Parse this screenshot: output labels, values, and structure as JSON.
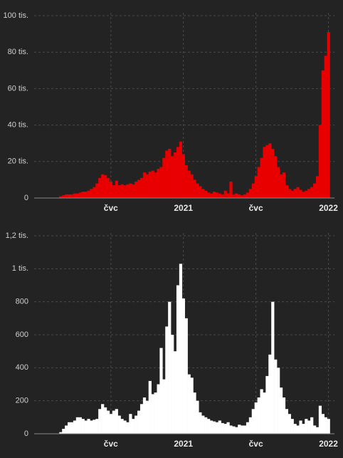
{
  "chart_data": [
    {
      "type": "bar",
      "color": "#e80000",
      "grid": true,
      "categories": [
        null,
        null,
        null,
        null,
        null,
        null,
        null,
        null,
        null,
        null,
        null,
        null,
        null,
        null,
        null,
        null,
        null,
        null,
        null,
        null,
        null,
        null,
        null,
        null,
        null,
        null,
        null,
        "čvc",
        null,
        null,
        null,
        null,
        null,
        null,
        null,
        null,
        null,
        null,
        null,
        null,
        null,
        null,
        null,
        null,
        null,
        null,
        null,
        null,
        null,
        null,
        null,
        null,
        null,
        "2021",
        null,
        null,
        null,
        null,
        null,
        null,
        null,
        null,
        null,
        null,
        null,
        null,
        null,
        null,
        null,
        null,
        null,
        null,
        null,
        null,
        null,
        null,
        null,
        null,
        null,
        "čvc",
        null,
        null,
        null,
        null,
        null,
        null,
        null,
        null,
        null,
        null,
        null,
        null,
        null,
        null,
        null,
        null,
        null,
        null,
        null,
        null,
        null,
        null,
        null,
        null,
        null,
        "2022"
      ],
      "values": [
        null,
        null,
        null,
        null,
        null,
        null,
        null,
        null,
        null,
        1000,
        1500,
        2000,
        2000,
        2000,
        2500,
        2500,
        3000,
        3500,
        3500,
        4000,
        5000,
        6000,
        8000,
        11000,
        13000,
        12500,
        11000,
        9000,
        7000,
        9500,
        7000,
        7500,
        7000,
        7500,
        8000,
        7500,
        9000,
        10000,
        11000,
        14000,
        13000,
        14500,
        15000,
        14000,
        16000,
        17000,
        22000,
        26000,
        27000,
        23000,
        25000,
        28000,
        31000,
        24000,
        18000,
        15000,
        13000,
        10000,
        8000,
        6500,
        5000,
        4000,
        3000,
        2500,
        3500,
        3000,
        2500,
        2000,
        4000,
        2500,
        9000,
        2000,
        2500,
        2000,
        1500,
        2000,
        3000,
        5000,
        8000,
        12000,
        17000,
        22000,
        28000,
        29000,
        30000,
        27000,
        23000,
        17000,
        13000,
        14000,
        7000,
        5000,
        4000,
        5000,
        6000,
        4500,
        3500,
        4000,
        5000,
        6000,
        8000,
        12000,
        40000,
        70000,
        78000,
        91000
      ],
      "ylim": [
        0,
        100000
      ],
      "yticks": [
        0,
        {
          "value": 20000,
          "label": "20 tis."
        },
        {
          "value": 40000,
          "label": "40 tis."
        },
        {
          "value": 60000,
          "label": "60 tis."
        },
        {
          "value": 80000,
          "label": "80 tis."
        },
        {
          "value": 100000,
          "label": "100 tis."
        }
      ]
    },
    {
      "type": "bar",
      "color": "#ffffff",
      "grid": true,
      "categories": [
        null,
        null,
        null,
        null,
        null,
        null,
        null,
        null,
        null,
        null,
        null,
        null,
        null,
        null,
        null,
        null,
        null,
        null,
        null,
        null,
        null,
        null,
        null,
        null,
        null,
        null,
        null,
        "čvc",
        null,
        null,
        null,
        null,
        null,
        null,
        null,
        null,
        null,
        null,
        null,
        null,
        null,
        null,
        null,
        null,
        null,
        null,
        null,
        null,
        null,
        null,
        null,
        null,
        null,
        "2021",
        null,
        null,
        null,
        null,
        null,
        null,
        null,
        null,
        null,
        null,
        null,
        null,
        null,
        null,
        null,
        null,
        null,
        null,
        null,
        null,
        null,
        null,
        null,
        null,
        null,
        "čvc",
        null,
        null,
        null,
        null,
        null,
        null,
        null,
        null,
        null,
        null,
        null,
        null,
        null,
        null,
        null,
        null,
        null,
        null,
        null,
        null,
        null,
        null,
        null,
        null,
        null,
        "2022"
      ],
      "values": [
        null,
        null,
        null,
        null,
        null,
        null,
        null,
        null,
        null,
        10,
        30,
        50,
        70,
        70,
        80,
        100,
        100,
        90,
        80,
        90,
        80,
        85,
        90,
        150,
        180,
        160,
        140,
        120,
        140,
        150,
        110,
        90,
        80,
        70,
        120,
        90,
        110,
        140,
        180,
        220,
        200,
        320,
        240,
        250,
        300,
        520,
        330,
        650,
        800,
        600,
        500,
        900,
        1030,
        820,
        700,
        360,
        340,
        250,
        200,
        130,
        110,
        100,
        90,
        80,
        75,
        70,
        80,
        65,
        60,
        70,
        50,
        45,
        40,
        55,
        50,
        50,
        70,
        100,
        150,
        190,
        220,
        270,
        250,
        350,
        480,
        800,
        450,
        400,
        280,
        220,
        150,
        120,
        90,
        60,
        50,
        80,
        60,
        90,
        80,
        100,
        50,
        40,
        170,
        120,
        100,
        90
      ],
      "ylim": [
        0,
        1200
      ],
      "yticks": [
        0,
        200,
        400,
        600,
        800,
        {
          "value": 1000,
          "label": "1 tis."
        },
        {
          "value": 1200,
          "label": "1,2 tis."
        }
      ]
    }
  ]
}
